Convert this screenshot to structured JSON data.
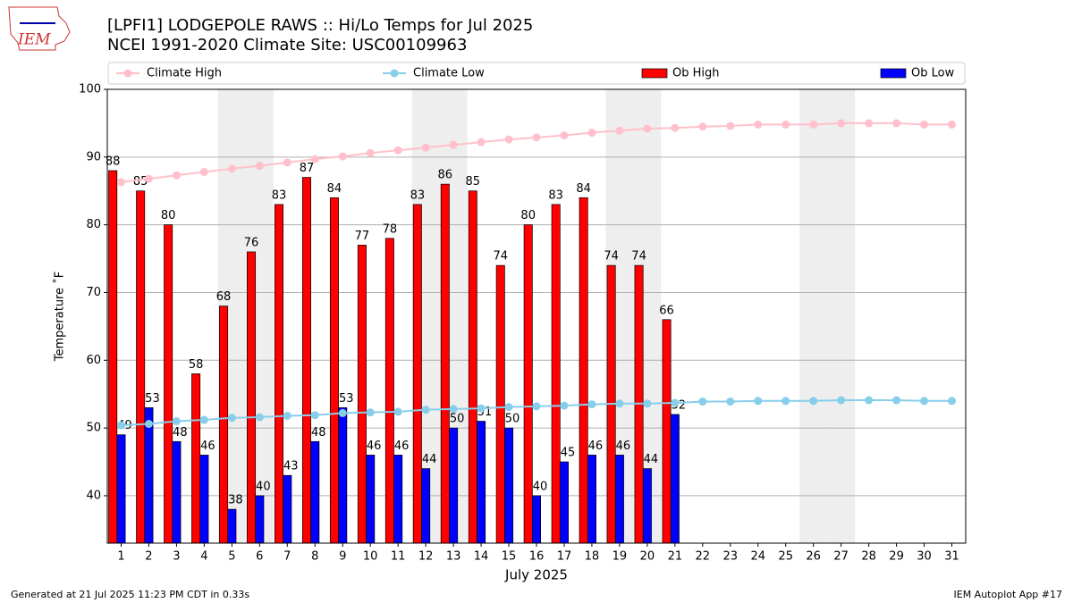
{
  "chart_data": {
    "type": "bar",
    "title": "[LPFI1] LODGEPOLE RAWS :: Hi/Lo Temps for Jul 2025",
    "subtitle": "NCEI 1991-2020 Climate Site: USC00109963",
    "ylabel": "Temperature ˚F",
    "xlabel": "July 2025",
    "logo": "IEM",
    "footer_left": "Generated at 21 Jul 2025 11:23 PM CDT in 0.33s",
    "footer_right": "IEM Autoplot App #17",
    "categories": [
      "1",
      "2",
      "3",
      "4",
      "5",
      "6",
      "7",
      "8",
      "9",
      "10",
      "11",
      "12",
      "13",
      "14",
      "15",
      "16",
      "17",
      "18",
      "19",
      "20",
      "21",
      "22",
      "23",
      "24",
      "25",
      "26",
      "27",
      "28",
      "29",
      "30",
      "31"
    ],
    "shaded_categories": [
      "5",
      "6",
      "12",
      "13",
      "19",
      "20",
      "26",
      "27"
    ],
    "series": [
      {
        "name": "Climate High",
        "type": "line",
        "color": "#ffc0cb",
        "values": [
          86.3,
          86.8,
          87.3,
          87.8,
          88.3,
          88.7,
          89.2,
          89.7,
          90.1,
          90.6,
          91.0,
          91.4,
          91.8,
          92.2,
          92.6,
          92.9,
          93.2,
          93.6,
          93.9,
          94.2,
          94.3,
          94.5,
          94.6,
          94.8,
          94.8,
          94.8,
          95.0,
          95.0,
          95.0,
          94.8,
          94.8
        ]
      },
      {
        "name": "Climate Low",
        "type": "line",
        "color": "#87ceeb",
        "values": [
          50.4,
          50.6,
          51.0,
          51.2,
          51.5,
          51.6,
          51.8,
          51.9,
          52.2,
          52.3,
          52.4,
          52.7,
          52.8,
          52.9,
          53.1,
          53.2,
          53.3,
          53.5,
          53.6,
          53.6,
          53.7,
          53.9,
          53.9,
          54.0,
          54.0,
          54.0,
          54.1,
          54.1,
          54.1,
          54.0,
          54.0
        ]
      },
      {
        "name": "Ob High",
        "type": "bar",
        "color": "#ff0000",
        "values": [
          88,
          85,
          80,
          58,
          68,
          76,
          83,
          87,
          84,
          77,
          78,
          83,
          86,
          85,
          74,
          80,
          83,
          84,
          74,
          74,
          66,
          null,
          null,
          null,
          null,
          null,
          null,
          null,
          null,
          null,
          null
        ]
      },
      {
        "name": "Ob Low",
        "type": "bar",
        "color": "#0000ff",
        "values": [
          49,
          53,
          48,
          46,
          38,
          40,
          43,
          48,
          53,
          46,
          46,
          44,
          50,
          51,
          50,
          40,
          45,
          46,
          46,
          44,
          52,
          null,
          null,
          null,
          null,
          null,
          null,
          null,
          null,
          null,
          null
        ]
      }
    ],
    "ylim": [
      33,
      100
    ],
    "yticks": [
      40,
      50,
      60,
      70,
      80,
      90,
      100
    ],
    "grid": true
  }
}
